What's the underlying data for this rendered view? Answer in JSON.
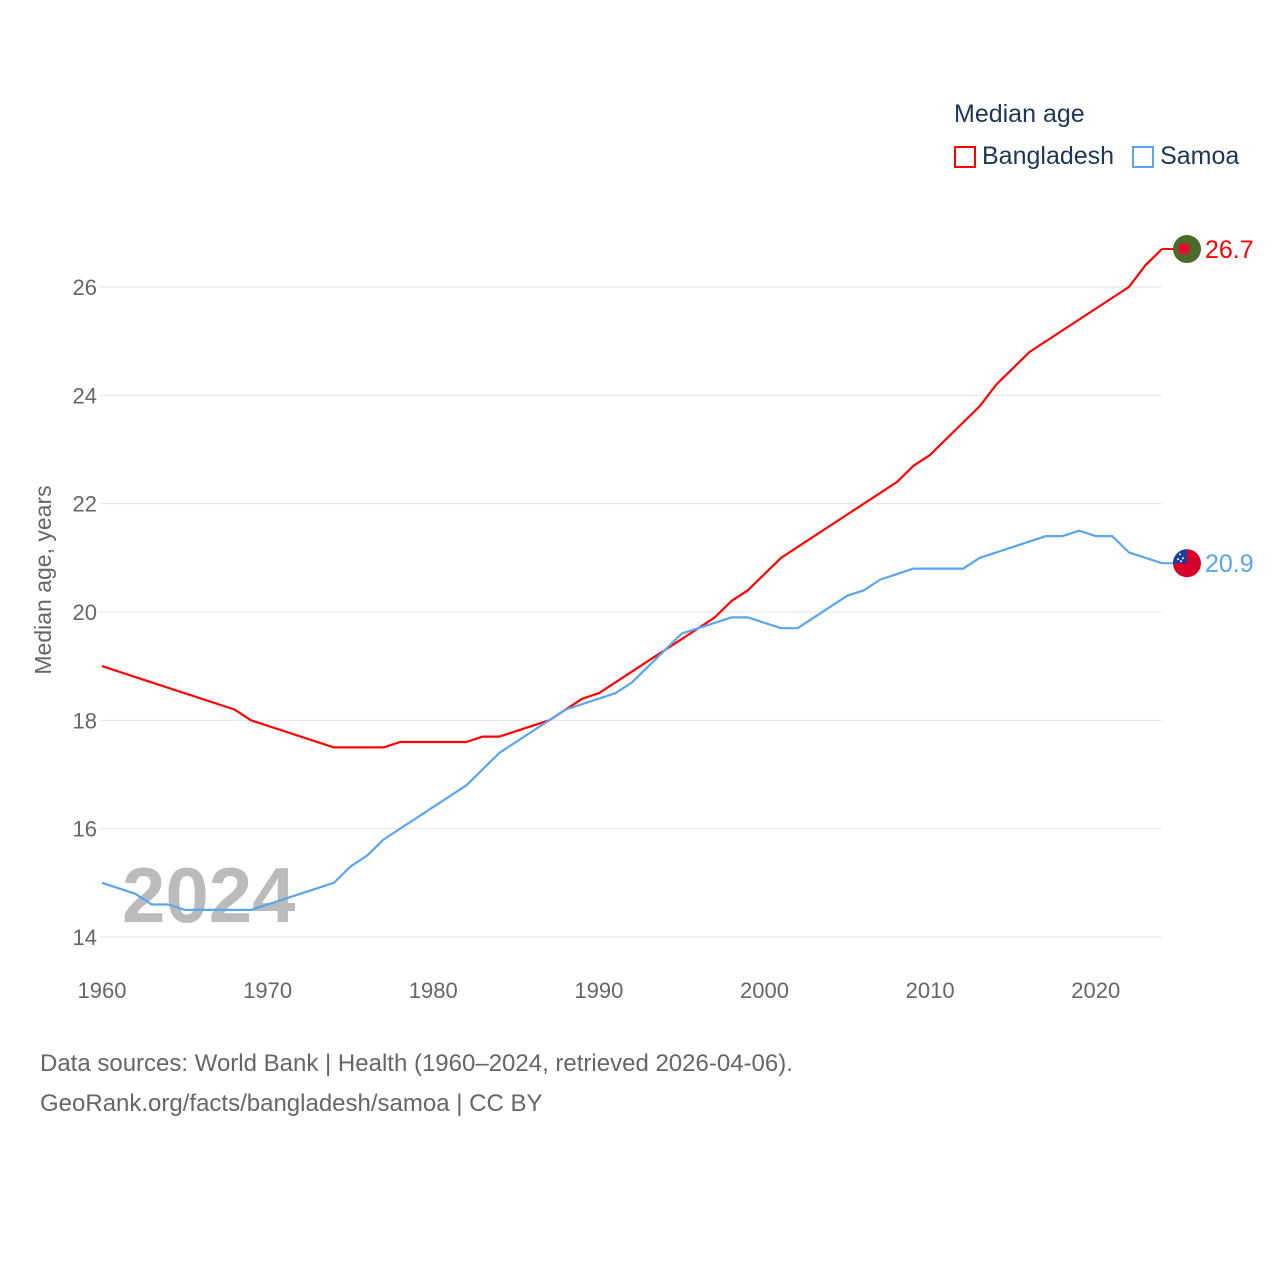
{
  "legend": {
    "title": "Median age",
    "items": [
      {
        "label": "Bangladesh",
        "color": "#ff0000"
      },
      {
        "label": "Samoa",
        "color": "#5ba4ee"
      }
    ]
  },
  "footer": {
    "line1": "Data sources: World Bank | Health (1960–2024, retrieved 2026-04-06).",
    "line2": "GeoRank.org/facts/bangladesh/samoa | CC BY"
  },
  "chart_data": {
    "type": "line",
    "title": "Median age",
    "xlabel": "",
    "ylabel": "Median age, years",
    "xlim": [
      1960,
      2024
    ],
    "ylim": [
      14,
      27
    ],
    "xticks": [
      1960,
      1970,
      1980,
      1990,
      2000,
      2010,
      2020
    ],
    "yticks": [
      14,
      16,
      18,
      20,
      22,
      24,
      26
    ],
    "grid": true,
    "legend_position": "top-right",
    "watermark_year": "2024",
    "series": [
      {
        "name": "Bangladesh",
        "color": "#ff0000",
        "end_label": "26.7",
        "flag": "bangladesh-flag",
        "points": [
          [
            1960,
            19.0
          ],
          [
            1968,
            18.2
          ],
          [
            1969,
            18.0
          ],
          [
            1974,
            17.5
          ],
          [
            1977,
            17.5
          ],
          [
            1978,
            17.6
          ],
          [
            1982,
            17.6
          ],
          [
            1983,
            17.7
          ],
          [
            1984,
            17.7
          ],
          [
            1987,
            18.0
          ],
          [
            1989,
            18.4
          ],
          [
            1990,
            18.5
          ],
          [
            1995,
            19.5
          ],
          [
            1997,
            19.9
          ],
          [
            1998,
            20.2
          ],
          [
            1999,
            20.4
          ],
          [
            2001,
            21.0
          ],
          [
            2005,
            21.8
          ],
          [
            2008,
            22.4
          ],
          [
            2009,
            22.7
          ],
          [
            2010,
            22.9
          ],
          [
            2013,
            23.8
          ],
          [
            2014,
            24.2
          ],
          [
            2016,
            24.8
          ],
          [
            2022,
            26.0
          ],
          [
            2023,
            26.4
          ],
          [
            2024,
            26.7
          ]
        ]
      },
      {
        "name": "Samoa",
        "color": "#5ba4ee",
        "end_label": "20.9",
        "flag": "samoa-flag",
        "points": [
          [
            1960,
            15.0
          ],
          [
            1962,
            14.8
          ],
          [
            1963,
            14.6
          ],
          [
            1964,
            14.6
          ],
          [
            1965,
            14.5
          ],
          [
            1969,
            14.5
          ],
          [
            1974,
            15.0
          ],
          [
            1975,
            15.3
          ],
          [
            1976,
            15.5
          ],
          [
            1977,
            15.8
          ],
          [
            1982,
            16.8
          ],
          [
            1984,
            17.4
          ],
          [
            1987,
            18.0
          ],
          [
            1988,
            18.2
          ],
          [
            1991,
            18.5
          ],
          [
            1992,
            18.7
          ],
          [
            1995,
            19.6
          ],
          [
            1996,
            19.7
          ],
          [
            1998,
            19.9
          ],
          [
            1999,
            19.9
          ],
          [
            2001,
            19.7
          ],
          [
            2002,
            19.7
          ],
          [
            2005,
            20.3
          ],
          [
            2006,
            20.4
          ],
          [
            2007,
            20.6
          ],
          [
            2009,
            20.8
          ],
          [
            2012,
            20.8
          ],
          [
            2013,
            21.0
          ],
          [
            2017,
            21.4
          ],
          [
            2018,
            21.4
          ],
          [
            2019,
            21.5
          ],
          [
            2020,
            21.4
          ],
          [
            2021,
            21.4
          ],
          [
            2022,
            21.1
          ],
          [
            2024,
            20.9
          ]
        ]
      }
    ]
  }
}
